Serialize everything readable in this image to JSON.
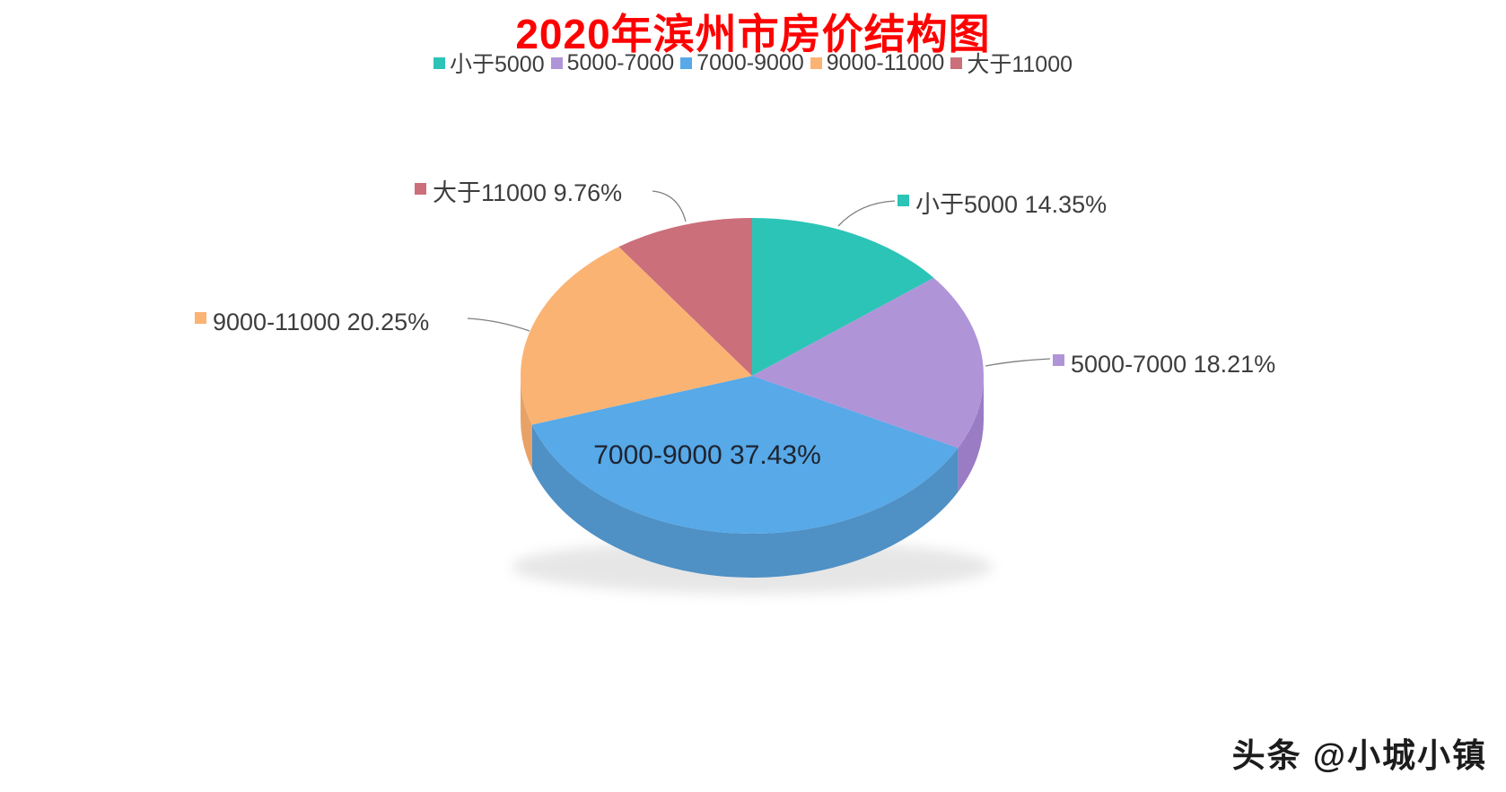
{
  "title": {
    "text": "2020年滨州市房价结构图",
    "color": "#FF0000"
  },
  "chart_data": {
    "type": "pie",
    "style": "3d",
    "title": "2020年滨州市房价结构图",
    "unit": "%",
    "legend_position": "top",
    "start_angle_deg": 0,
    "direction": "clockwise",
    "slices": [
      {
        "label": "小于5000",
        "value": 14.35,
        "display": "小于5000 14.35%",
        "color": "#2CC4B7",
        "side_color": "#27A69B"
      },
      {
        "label": "5000-7000",
        "value": 18.21,
        "display": "5000-7000 18.21%",
        "color": "#B094D8",
        "side_color": "#9A7CC4"
      },
      {
        "label": "7000-9000",
        "value": 37.43,
        "display": "7000-9000 37.43%",
        "color": "#57A9E8",
        "side_color": "#4F90C5"
      },
      {
        "label": "9000-11000",
        "value": 20.25,
        "display": "9000-11000 20.25%",
        "color": "#FBB373",
        "side_color": "#E7A268"
      },
      {
        "label": "大于11000",
        "value": 9.76,
        "display": "大于11000 9.76%",
        "color": "#CB6F7B",
        "side_color": "#B25B67"
      }
    ]
  },
  "watermark": {
    "text": "头条 @小城小镇"
  }
}
